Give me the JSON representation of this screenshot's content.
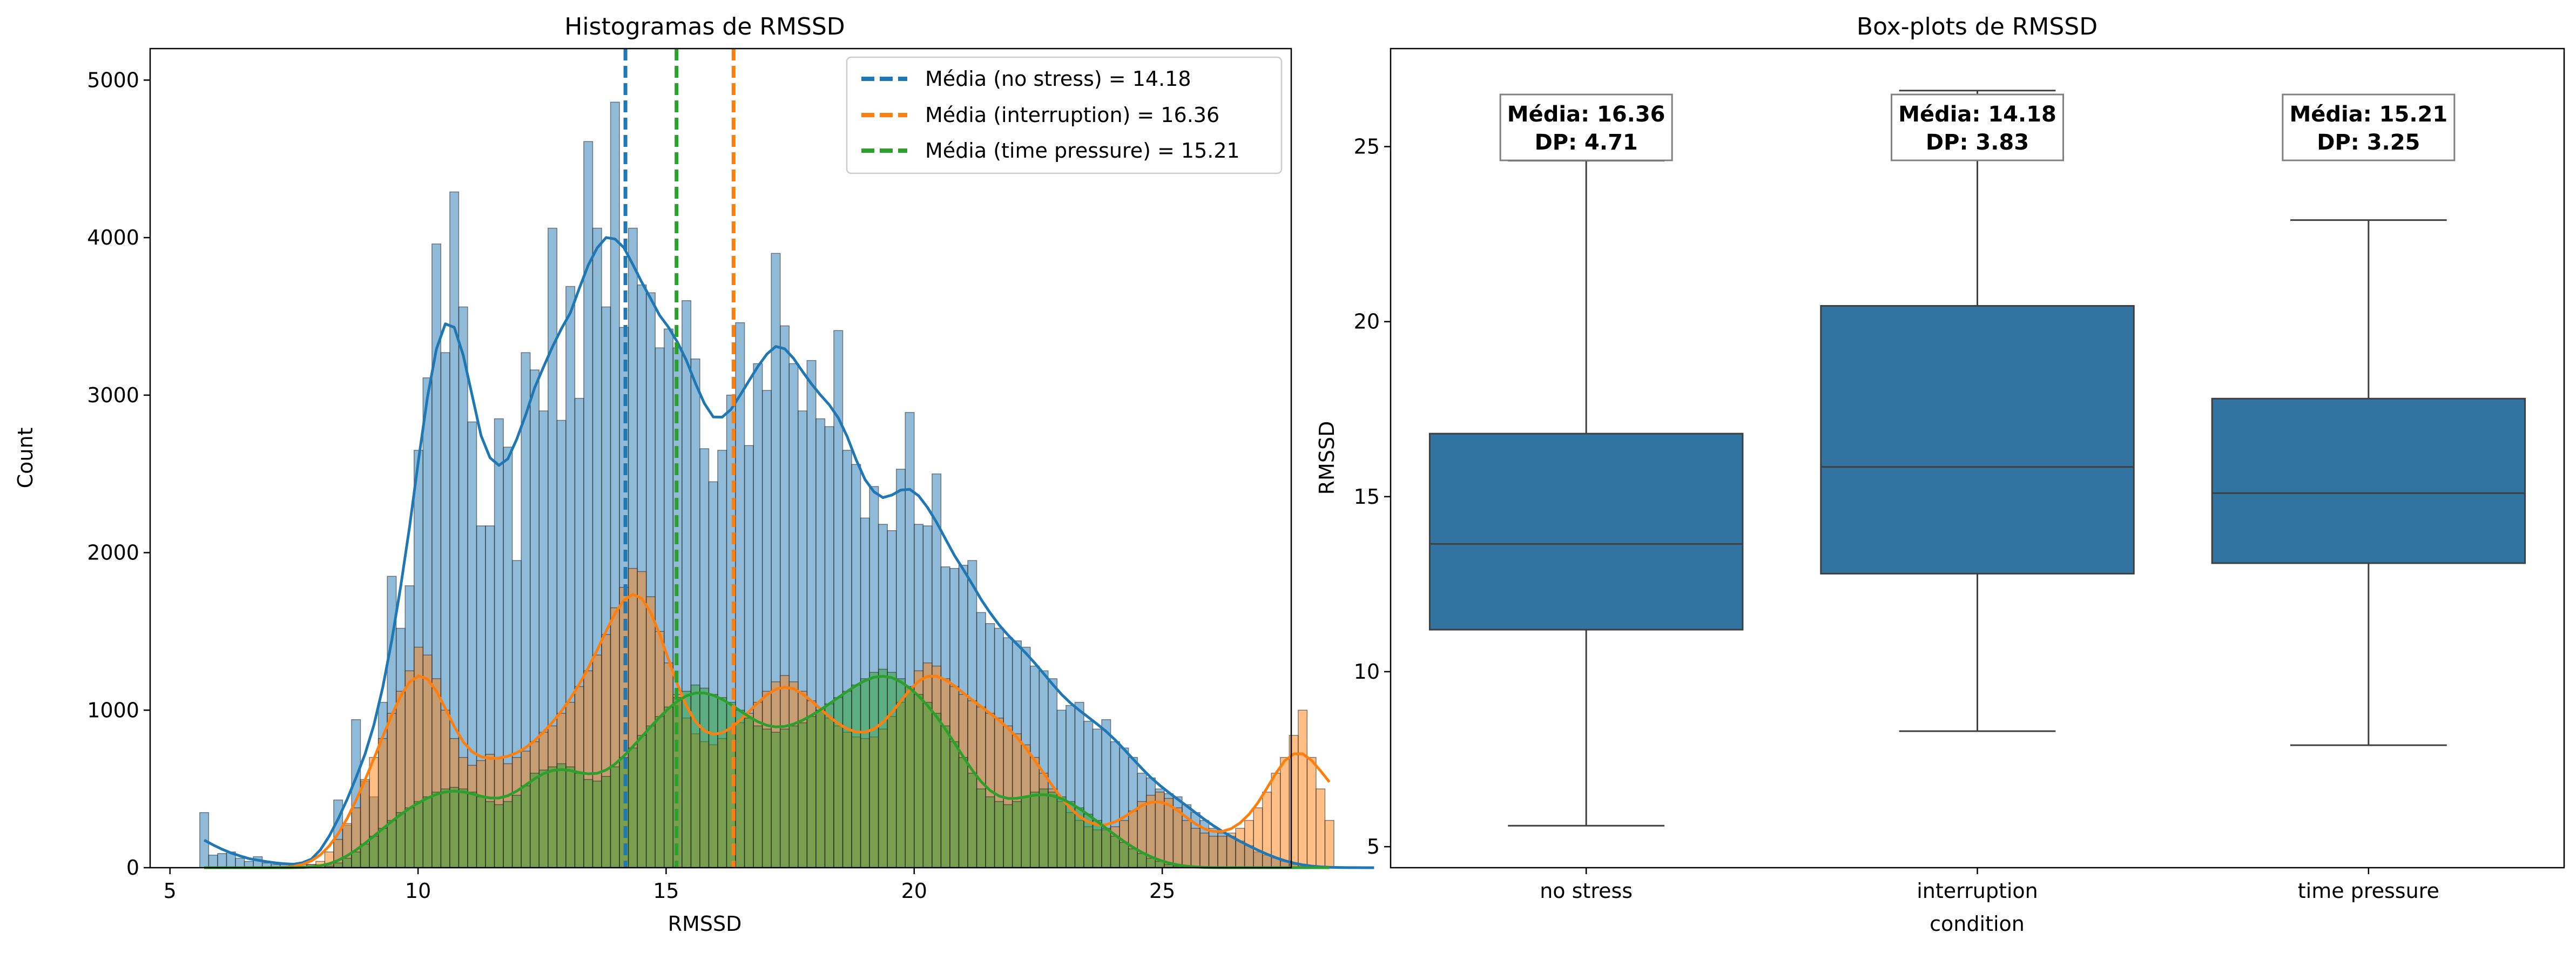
{
  "chart_data": [
    {
      "type": "histogram",
      "title": "Histogramas de RMSSD",
      "xlabel": "RMSSD",
      "ylabel": "Count",
      "xlim": [
        4.6,
        27.6
      ],
      "ylim": [
        0,
        5200
      ],
      "xticks": [
        5,
        10,
        15,
        20,
        25
      ],
      "yticks": [
        0,
        1000,
        2000,
        3000,
        4000,
        5000
      ],
      "legend_position": "top-right",
      "bin_start": 5.6,
      "bin_width": 0.18,
      "series": [
        {
          "name": "no stress",
          "color": "#1f77b4",
          "counts": [
            350,
            80,
            90,
            100,
            60,
            40,
            70,
            30,
            20,
            20,
            20,
            20,
            20,
            20,
            20,
            430,
            270,
            940,
            550,
            450,
            1050,
            1850,
            1520,
            1790,
            2650,
            3110,
            3960,
            3270,
            4290,
            3560,
            2830,
            2170,
            2170,
            2850,
            2670,
            1950,
            3270,
            3160,
            2900,
            4060,
            2840,
            3690,
            2980,
            4610,
            4060,
            3560,
            4860,
            3430,
            4060,
            3700,
            3650,
            3300,
            3420,
            3300,
            3600,
            3230,
            2660,
            2450,
            2650,
            3000,
            3460,
            2680,
            3200,
            3030,
            3900,
            3440,
            3200,
            2900,
            3220,
            2850,
            2800,
            3410,
            2650,
            2560,
            2220,
            2420,
            2180,
            2140,
            2530,
            2890,
            2180,
            2170,
            2500,
            1910,
            1900,
            1920,
            1950,
            1620,
            1550,
            1520,
            1460,
            1440,
            1400,
            1280,
            1250,
            1200,
            1000,
            1030,
            1050,
            930,
            880,
            940,
            800,
            760,
            700,
            600,
            570,
            500,
            470,
            450,
            400,
            350,
            300,
            250,
            220,
            200,
            170,
            140,
            100,
            80,
            60,
            40,
            20,
            10,
            5,
            3,
            2,
            0,
            0,
            0,
            0,
            0
          ]
        },
        {
          "name": "interruption",
          "color": "#ff7f0e",
          "counts": [
            0,
            0,
            0,
            0,
            0,
            0,
            0,
            0,
            0,
            0,
            0,
            0,
            20,
            40,
            100,
            180,
            280,
            380,
            560,
            700,
            820,
            980,
            1120,
            1250,
            1400,
            1350,
            1200,
            1000,
            820,
            700,
            650,
            680,
            720,
            700,
            660,
            700,
            740,
            800,
            860,
            900,
            980,
            1050,
            1150,
            1250,
            1350,
            1480,
            1650,
            1780,
            1900,
            1880,
            1720,
            1500,
            1300,
            1100,
            950,
            850,
            800,
            780,
            820,
            880,
            920,
            980,
            1050,
            1120,
            1180,
            1220,
            1180,
            1120,
            1060,
            1000,
            950,
            900,
            860,
            830,
            820,
            830,
            880,
            960,
            1050,
            1150,
            1250,
            1300,
            1280,
            1200,
            1150,
            1100,
            1060,
            1020,
            980,
            950,
            900,
            850,
            780,
            700,
            600,
            500,
            420,
            350,
            300,
            260,
            240,
            240,
            260,
            300,
            360,
            420,
            460,
            480,
            440,
            380,
            300,
            250,
            220,
            200,
            200,
            220,
            250,
            300,
            380,
            480,
            600,
            700,
            840,
            1000,
            700,
            500,
            300
          ]
        },
        {
          "name": "time pressure",
          "color": "#2ca02c",
          "counts": [
            0,
            0,
            0,
            0,
            0,
            0,
            0,
            0,
            0,
            0,
            0,
            0,
            0,
            0,
            10,
            30,
            60,
            100,
            150,
            200,
            250,
            300,
            350,
            380,
            420,
            450,
            480,
            500,
            510,
            500,
            480,
            450,
            420,
            400,
            420,
            460,
            520,
            600,
            620,
            640,
            660,
            640,
            600,
            560,
            550,
            580,
            640,
            700,
            760,
            840,
            900,
            960,
            1020,
            1080,
            1120,
            1160,
            1140,
            1100,
            1080,
            1050,
            1000,
            950,
            900,
            880,
            860,
            880,
            900,
            920,
            960,
            1000,
            1040,
            1080,
            1120,
            1160,
            1200,
            1240,
            1260,
            1240,
            1200,
            1150,
            1100,
            1050,
            980,
            900,
            800,
            700,
            600,
            500,
            450,
            420,
            400,
            420,
            450,
            480,
            500,
            480,
            450,
            420,
            380,
            340,
            300,
            250,
            200,
            160,
            120,
            90,
            60,
            40,
            20,
            10,
            5,
            0,
            0,
            0,
            0,
            0,
            0,
            0,
            0,
            0,
            0,
            0,
            0,
            0,
            0,
            0,
            0
          ]
        }
      ],
      "mean_lines": [
        {
          "label": "Média (no stress) = 14.18",
          "x": 14.18,
          "color": "#1f77b4"
        },
        {
          "label": "Média (interruption) = 16.36",
          "x": 16.36,
          "color": "#ff7f0e"
        },
        {
          "label": "Média (time pressure) = 15.21",
          "x": 15.21,
          "color": "#2ca02c"
        }
      ]
    },
    {
      "type": "box",
      "title": "Box-plots de RMSSD",
      "xlabel": "condition",
      "ylabel": "RMSSD",
      "ylim": [
        4.4,
        27.8
      ],
      "yticks": [
        5,
        10,
        15,
        20,
        25
      ],
      "box_color": "#3274a1",
      "categories": [
        "no stress",
        "interruption",
        "time pressure"
      ],
      "boxes": [
        {
          "category": "no stress",
          "whislo": 5.6,
          "q1": 11.2,
          "median": 13.65,
          "q3": 16.8,
          "whishi": 24.6
        },
        {
          "category": "interruption",
          "whislo": 8.3,
          "q1": 12.8,
          "median": 15.85,
          "q3": 20.45,
          "whishi": 26.6
        },
        {
          "category": "time pressure",
          "whislo": 7.9,
          "q1": 13.1,
          "median": 15.1,
          "q3": 17.8,
          "whishi": 22.9
        }
      ],
      "annotations": [
        {
          "line1": "Média: 16.36",
          "line2": "DP: 4.71"
        },
        {
          "line1": "Média: 14.18",
          "line2": "DP: 3.83"
        },
        {
          "line1": "Média: 15.21",
          "line2": "DP: 3.25"
        }
      ]
    }
  ]
}
